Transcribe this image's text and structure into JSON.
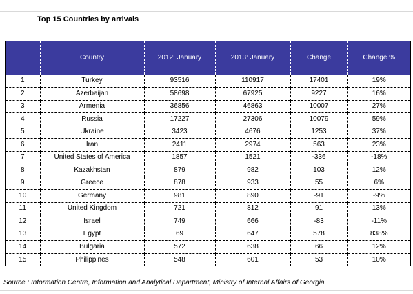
{
  "title": "Top 15 Countries by arrivals",
  "table": {
    "headers": [
      "",
      "Country",
      "2012: January",
      "2013:  January",
      "Change",
      "Change %"
    ],
    "rows": [
      {
        "rank": "1",
        "country": "Turkey",
        "y2012": "93516",
        "y2013": "110917",
        "change": "17401",
        "pct": "19%"
      },
      {
        "rank": "2",
        "country": "Azerbaijan",
        "y2012": "58698",
        "y2013": "67925",
        "change": "9227",
        "pct": "16%"
      },
      {
        "rank": "3",
        "country": "Armenia",
        "y2012": "36856",
        "y2013": "46863",
        "change": "10007",
        "pct": "27%"
      },
      {
        "rank": "4",
        "country": "Russia",
        "y2012": "17227",
        "y2013": "27306",
        "change": "10079",
        "pct": "59%"
      },
      {
        "rank": "5",
        "country": "Ukraine",
        "y2012": "3423",
        "y2013": "4676",
        "change": "1253",
        "pct": "37%"
      },
      {
        "rank": "6",
        "country": "Iran",
        "y2012": "2411",
        "y2013": "2974",
        "change": "563",
        "pct": "23%"
      },
      {
        "rank": "7",
        "country": "United States of America",
        "y2012": "1857",
        "y2013": "1521",
        "change": "-336",
        "pct": "-18%"
      },
      {
        "rank": "8",
        "country": "Kazakhstan",
        "y2012": "879",
        "y2013": "982",
        "change": "103",
        "pct": "12%"
      },
      {
        "rank": "9",
        "country": "Greece",
        "y2012": "878",
        "y2013": "933",
        "change": "55",
        "pct": "6%"
      },
      {
        "rank": "10",
        "country": "Germany",
        "y2012": "981",
        "y2013": "890",
        "change": "-91",
        "pct": "-9%"
      },
      {
        "rank": "11",
        "country": "United Kingdom",
        "y2012": "721",
        "y2013": "812",
        "change": "91",
        "pct": "13%"
      },
      {
        "rank": "12",
        "country": "Israel",
        "y2012": "749",
        "y2013": "666",
        "change": "-83",
        "pct": "-11%"
      },
      {
        "rank": "13",
        "country": "Egypt",
        "y2012": "69",
        "y2013": "647",
        "change": "578",
        "pct": "838%"
      },
      {
        "rank": "14",
        "country": "Bulgaria",
        "y2012": "572",
        "y2013": "638",
        "change": "66",
        "pct": "12%"
      },
      {
        "rank": "15",
        "country": "Philippines",
        "y2012": "548",
        "y2013": "601",
        "change": "53",
        "pct": "10%"
      }
    ]
  },
  "source": "Source : Information Centre, Information and Analytical Department, Ministry of Internal Affairs of Georgia",
  "colors": {
    "header_bg": "#3b3b9e",
    "header_text": "#ffffff"
  }
}
